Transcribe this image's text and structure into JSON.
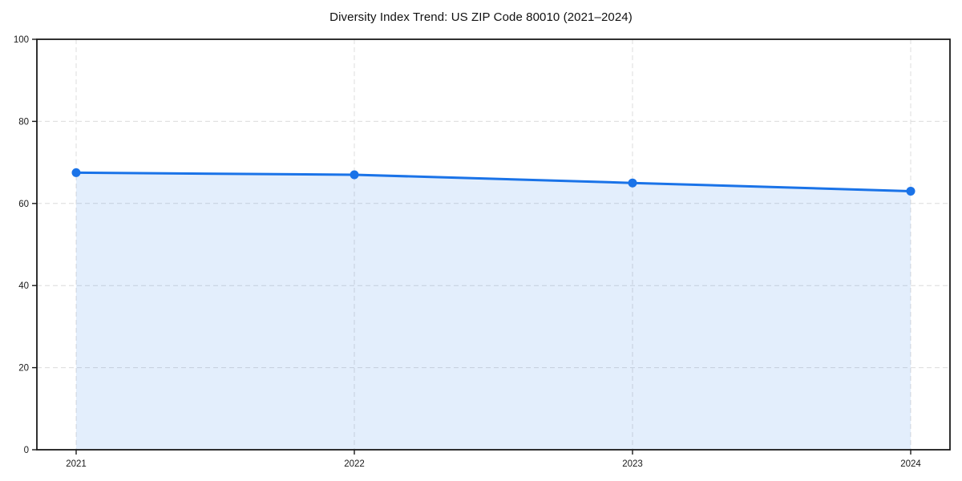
{
  "title": "Diversity Index Trend: US ZIP Code 80010 (2021–2024)",
  "chart_data": {
    "type": "area",
    "title": "Diversity Index Trend: US ZIP Code 80010 (2021–2024)",
    "series_name": "Diversity Index",
    "categories": [
      "2021",
      "2022",
      "2023",
      "2024"
    ],
    "values": [
      67.5,
      67,
      65,
      63
    ],
    "xlabel": "",
    "ylabel": "",
    "ylim": [
      0,
      100
    ],
    "yticks": [
      0,
      20,
      40,
      60,
      80,
      100
    ],
    "grid": true,
    "grid_style": "dashed",
    "legend": false,
    "colors": {
      "line": "#1a73e8",
      "marker": "#1a73e8",
      "fill": "rgba(26,115,232,0.12)",
      "grid": "#dcdcdc",
      "spine": "#1a1a1a",
      "tick_label": "#1a1a1a",
      "background": "#ffffff"
    }
  }
}
